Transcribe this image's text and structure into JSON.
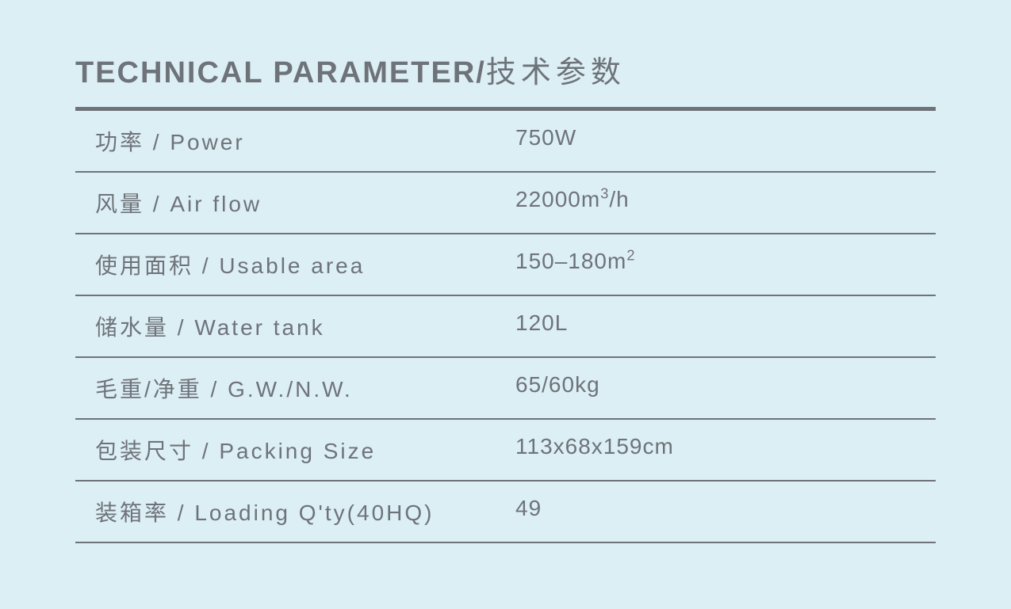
{
  "title_en": "TECHNICAL PARAMETER/",
  "title_cn": "技术参数",
  "rows": [
    {
      "label": "功率 / Power",
      "value": "750W"
    },
    {
      "label": "风量 / Air flow",
      "value_html": "22000m<sup>3</sup>/h"
    },
    {
      "label": "使用面积 / Usable area",
      "value_html": "150–180m<sup>2</sup>"
    },
    {
      "label": "储水量 / Water tank",
      "value": "120L"
    },
    {
      "label": "毛重/净重 / G.W./N.W.",
      "value": "65/60kg"
    },
    {
      "label": "包装尺寸 / Packing Size",
      "value": "113x68x159cm"
    },
    {
      "label": "装箱率 / Loading Q'ty(40HQ)",
      "value": "49"
    }
  ],
  "style": {
    "bg_color": "#dceff5",
    "text_color": "#6e7379",
    "border_color": "#6e7379",
    "title_fontsize": 38,
    "row_fontsize": 28,
    "top_border_width": 5,
    "row_border_width": 2
  }
}
